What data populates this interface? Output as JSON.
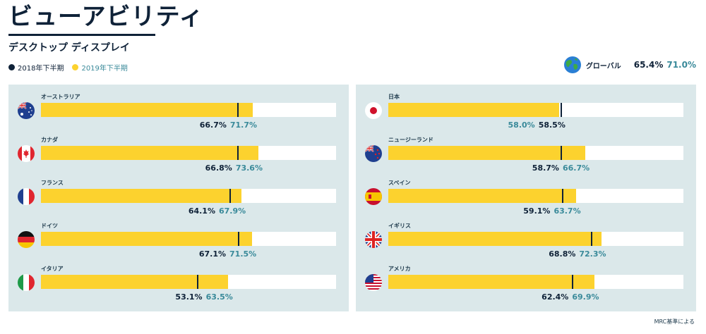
{
  "header": {
    "title": "ビューアビリティ",
    "subtitle": "デスクトップ ディスプレイ"
  },
  "legend": {
    "items": [
      {
        "label": "2018年下半期",
        "color": "#0f2238"
      },
      {
        "label": "2019年下半期",
        "color": "#fcd22e"
      }
    ]
  },
  "global": {
    "label": "グローバル",
    "icon": "globe-icon",
    "h2_2018": "65.4%",
    "h2_2019": "71.0%"
  },
  "footnote": "MRC基準による",
  "chart_data": {
    "type": "bar",
    "orientation": "horizontal",
    "xlim": [
      0,
      100
    ],
    "series": [
      {
        "name": "2018年下半期",
        "color": "#0f2238",
        "style": "marker"
      },
      {
        "name": "2019年下半期",
        "color": "#fcd22e",
        "style": "bar"
      }
    ],
    "panels": [
      {
        "countries": [
          {
            "name": "オーストラリア",
            "flag": "australia-flag-icon",
            "h2_2018": 66.7,
            "h2_2019": 71.7,
            "label_2018": "66.7%",
            "label_2019": "71.7%"
          },
          {
            "name": "カナダ",
            "flag": "canada-flag-icon",
            "h2_2018": 66.8,
            "h2_2019": 73.6,
            "label_2018": "66.8%",
            "label_2019": "73.6%"
          },
          {
            "name": "フランス",
            "flag": "france-flag-icon",
            "h2_2018": 64.1,
            "h2_2019": 67.9,
            "label_2018": "64.1%",
            "label_2019": "67.9%"
          },
          {
            "name": "ドイツ",
            "flag": "germany-flag-icon",
            "h2_2018": 67.1,
            "h2_2019": 71.5,
            "label_2018": "67.1%",
            "label_2019": "71.5%"
          },
          {
            "name": "イタリア",
            "flag": "italy-flag-icon",
            "h2_2018": 53.1,
            "h2_2019": 63.5,
            "label_2018": "53.1%",
            "label_2019": "63.5%"
          }
        ]
      },
      {
        "countries": [
          {
            "name": "日本",
            "flag": "japan-flag-icon",
            "h2_2018": 58.5,
            "h2_2019": 58.0,
            "label_2018": "58.5%",
            "label_2019": "58.0%"
          },
          {
            "name": "ニュージーランド",
            "flag": "new-zealand-flag-icon",
            "h2_2018": 58.7,
            "h2_2019": 66.7,
            "label_2018": "58.7%",
            "label_2019": "66.7%"
          },
          {
            "name": "スペイン",
            "flag": "spain-flag-icon",
            "h2_2018": 59.1,
            "h2_2019": 63.7,
            "label_2018": "59.1%",
            "label_2019": "63.7%"
          },
          {
            "name": "イギリス",
            "flag": "uk-flag-icon",
            "h2_2018": 68.8,
            "h2_2019": 72.3,
            "label_2018": "68.8%",
            "label_2019": "72.3%"
          },
          {
            "name": "アメリカ",
            "flag": "usa-flag-icon",
            "h2_2018": 62.4,
            "h2_2019": 69.9,
            "label_2018": "62.4%",
            "label_2019": "69.9%"
          }
        ]
      }
    ]
  }
}
